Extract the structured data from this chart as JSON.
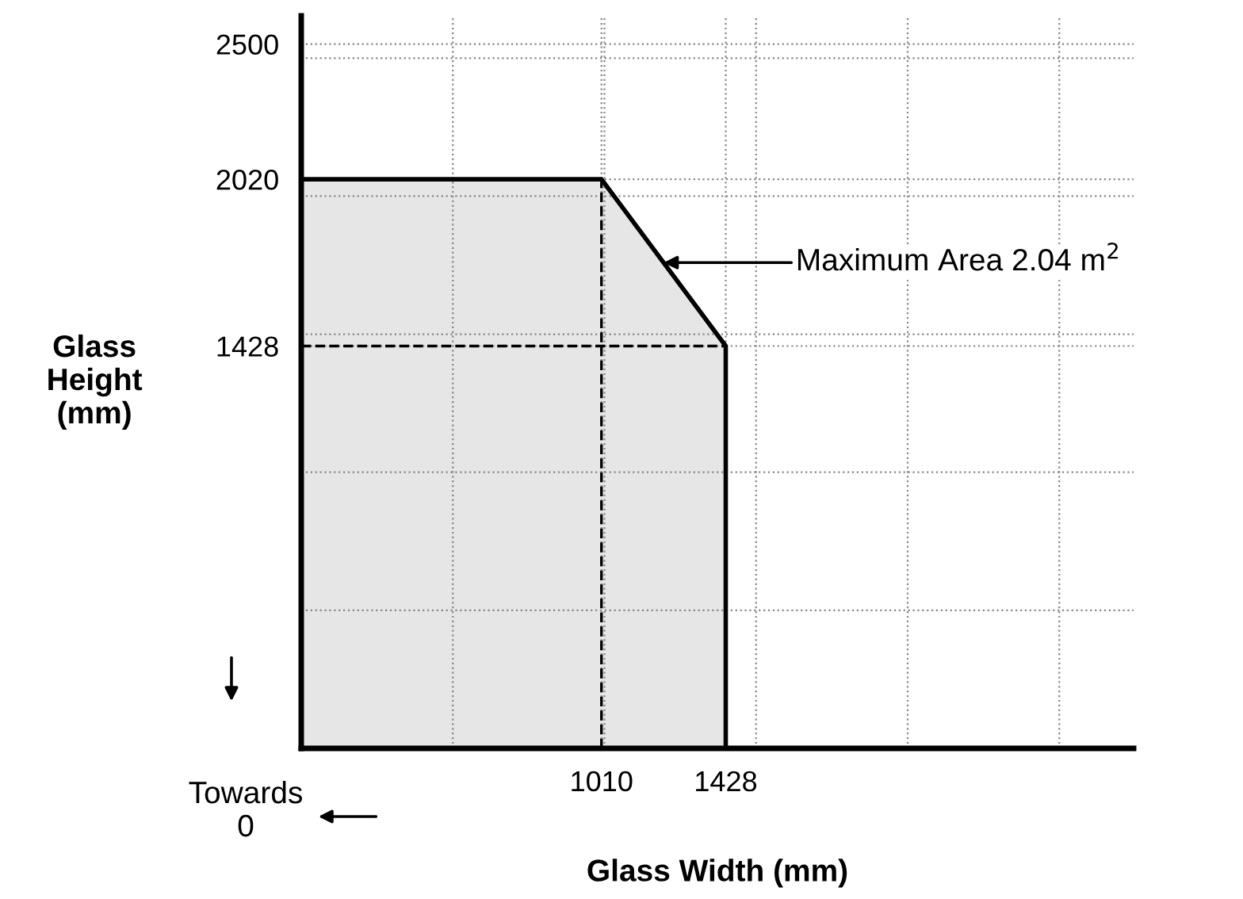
{
  "chart_data": {
    "type": "area",
    "xlabel": "Glass Width (mm)",
    "ylabel": "Glass\nHeight\n(mm)",
    "x": [
      0,
      1010,
      1428,
      1428
    ],
    "series": [
      {
        "color": "#e6e6e6",
        "values": [
          2020,
          2020,
          1428,
          0
        ]
      }
    ],
    "xlim": [
      0,
      2800
    ],
    "ylim": [
      0,
      2600
    ],
    "xticks": [
      {
        "value": 510,
        "label": null
      },
      1010,
      {
        "value": 1020,
        "label": null
      },
      1428,
      {
        "value": 1530,
        "label": null
      },
      {
        "value": 2040,
        "label": null
      },
      {
        "value": 2550,
        "label": null
      }
    ],
    "yticks": [
      {
        "value": 490,
        "label": null
      },
      {
        "value": 980,
        "label": null
      },
      1428,
      {
        "value": 1470,
        "label": null
      },
      {
        "value": 1960,
        "label": null
      },
      2020,
      {
        "value": 2450,
        "label": null
      },
      2500
    ],
    "grid": true,
    "ref_lines": [
      {
        "axis": "x",
        "value": 1010,
        "line_style": "dashed"
      },
      {
        "axis": "y",
        "value": 1428,
        "line_style": "dashed"
      }
    ],
    "annotations": [
      "Maximum Area 2.04 m$^{2}$",
      "Towards\n0"
    ]
  }
}
